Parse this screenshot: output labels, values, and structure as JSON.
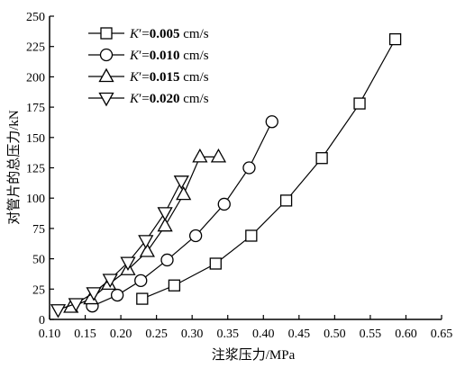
{
  "chart_data": {
    "type": "line",
    "title": "",
    "xlabel": "注浆压力/MPa",
    "ylabel": "对管片的总压力/kN",
    "xlim": [
      0.1,
      0.65
    ],
    "ylim": [
      0,
      250
    ],
    "xticks": [
      "0.10",
      "0.15",
      "0.20",
      "0.25",
      "0.30",
      "0.35",
      "0.40",
      "0.45",
      "0.50",
      "0.55",
      "0.60",
      "0.65"
    ],
    "yticks": [
      "0",
      "25",
      "50",
      "75",
      "100",
      "125",
      "150",
      "175",
      "200",
      "225",
      "250"
    ],
    "grid": false,
    "legend_position": "top-left",
    "series": [
      {
        "name": "K′=0.005 cm/s",
        "label_parts": [
          "K",
          "′=",
          "0.005",
          " cm/s"
        ],
        "marker": "square",
        "x": [
          0.23,
          0.275,
          0.333,
          0.383,
          0.432,
          0.482,
          0.535,
          0.585
        ],
        "y": [
          17,
          28,
          46,
          69,
          98,
          133,
          178,
          231
        ]
      },
      {
        "name": "K′=0.010 cm/s",
        "label_parts": [
          "K",
          "′=",
          "0.010",
          " cm/s"
        ],
        "marker": "circle",
        "x": [
          0.16,
          0.195,
          0.228,
          0.265,
          0.305,
          0.345,
          0.38,
          0.412
        ],
        "y": [
          11,
          20,
          32,
          49,
          69,
          95,
          125,
          163
        ]
      },
      {
        "name": "K′=0.015 cm/s",
        "label_parts": [
          "K",
          "′=",
          "0.015",
          " cm/s"
        ],
        "marker": "triangle-up",
        "x": [
          0.13,
          0.158,
          0.183,
          0.21,
          0.237,
          0.262,
          0.288,
          0.311,
          0.337
        ],
        "y": [
          10,
          17,
          29,
          41,
          56,
          77,
          103,
          134,
          134
        ]
      },
      {
        "name": "K′=0.020 cm/s",
        "label_parts": [
          "K",
          "′=",
          "0.020",
          " cm/s"
        ],
        "marker": "triangle-down",
        "x": [
          0.112,
          0.137,
          0.162,
          0.185,
          0.21,
          0.235,
          0.262,
          0.285
        ],
        "y": [
          8,
          13,
          22,
          33,
          47,
          65,
          88,
          114
        ]
      }
    ]
  }
}
